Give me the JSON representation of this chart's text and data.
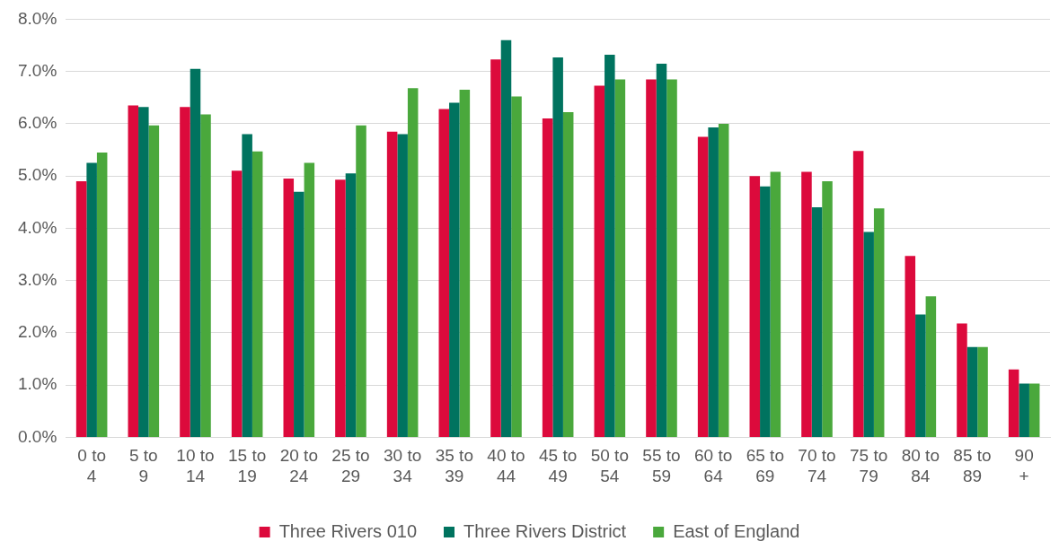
{
  "chart_data": {
    "type": "bar",
    "categories": [
      "0 to 4",
      "5 to 9",
      "10 to 14",
      "15 to 19",
      "20 to 24",
      "25 to 29",
      "30 to 34",
      "35 to 39",
      "40 to 44",
      "45 to 49",
      "50 to 54",
      "55 to 59",
      "60 to 64",
      "65 to 69",
      "70 to 74",
      "75 to 79",
      "80 to 84",
      "85 to 89",
      "90 +"
    ],
    "series": [
      {
        "name": "Three Rivers 010",
        "color": "#dc0a3c",
        "values": [
          4.9,
          6.35,
          6.32,
          5.1,
          4.95,
          4.93,
          5.85,
          6.28,
          7.23,
          6.1,
          6.73,
          6.85,
          5.75,
          5.0,
          5.08,
          5.48,
          3.47,
          2.18,
          1.3
        ]
      },
      {
        "name": "Three Rivers District",
        "color": "#00735f",
        "values": [
          5.25,
          6.32,
          7.05,
          5.8,
          4.7,
          5.05,
          5.8,
          6.4,
          7.6,
          7.27,
          7.32,
          7.15,
          5.93,
          4.8,
          4.4,
          3.93,
          2.35,
          1.73,
          1.03
        ]
      },
      {
        "name": "East of England",
        "color": "#4aa83c",
        "values": [
          5.45,
          5.97,
          6.18,
          5.47,
          5.25,
          5.97,
          6.68,
          6.65,
          6.52,
          6.22,
          6.85,
          6.85,
          6.0,
          5.08,
          4.9,
          4.38,
          2.7,
          1.73,
          1.03
        ]
      }
    ],
    "ylim": [
      0,
      8
    ],
    "yticks": [
      {
        "value": 0,
        "label": "0.0%"
      },
      {
        "value": 1,
        "label": "1.0%"
      },
      {
        "value": 2,
        "label": "2.0%"
      },
      {
        "value": 3,
        "label": "3.0%"
      },
      {
        "value": 4,
        "label": "4.0%"
      },
      {
        "value": 5,
        "label": "5.0%"
      },
      {
        "value": 6,
        "label": "6.0%"
      },
      {
        "value": 7,
        "label": "7.0%"
      },
      {
        "value": 8,
        "label": "8.0%"
      }
    ],
    "grid": "y",
    "legend": "bottom"
  }
}
